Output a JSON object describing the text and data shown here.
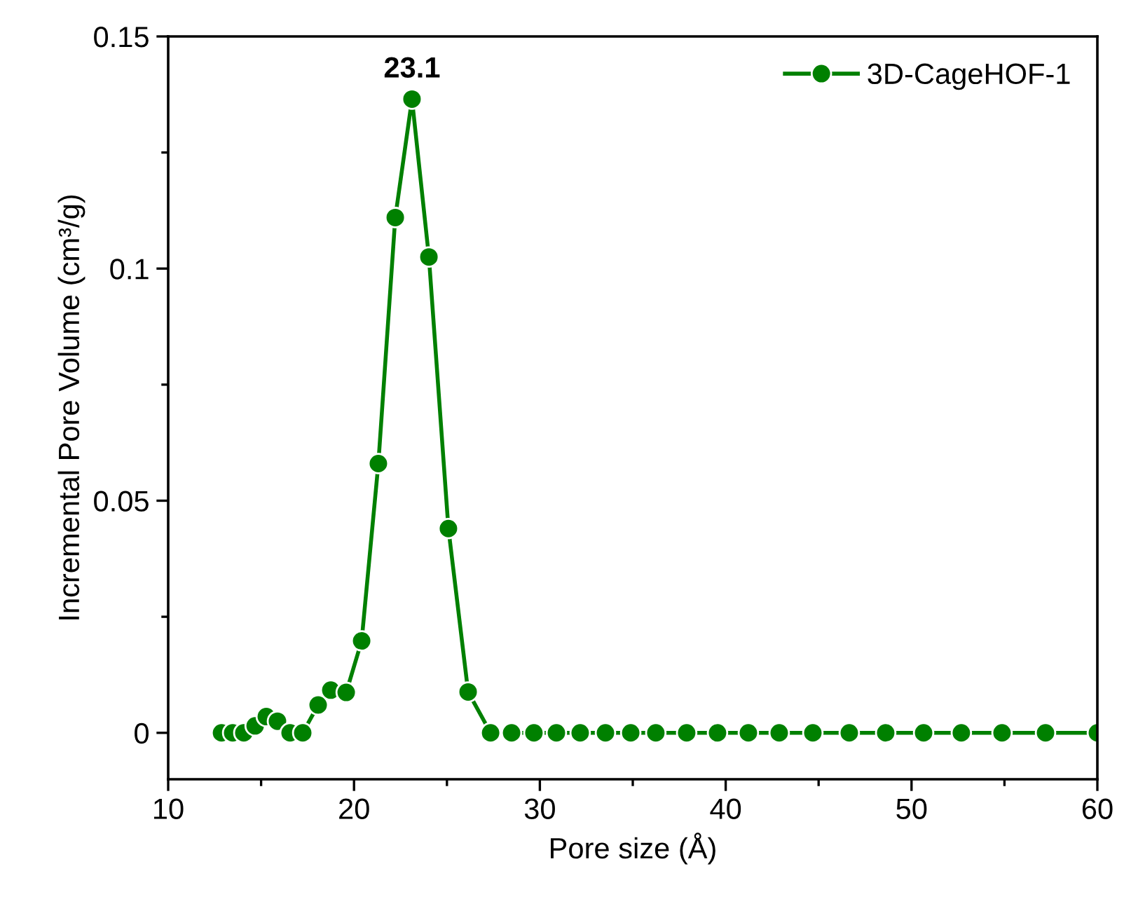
{
  "chart_data": {
    "type": "line",
    "xlabel": "Pore size (Å)",
    "ylabel": "Incremental Pore Volume (cm³/g)",
    "x": [
      12.87,
      13.47,
      14.07,
      14.68,
      15.28,
      15.88,
      16.56,
      17.24,
      18.07,
      18.75,
      19.58,
      20.41,
      21.31,
      22.22,
      23.12,
      24.03,
      25.08,
      26.14,
      27.35,
      28.48,
      29.68,
      30.89,
      32.17,
      33.53,
      34.89,
      36.24,
      37.9,
      39.56,
      41.22,
      42.88,
      44.69,
      46.65,
      48.61,
      50.65,
      52.68,
      54.87,
      57.21,
      60.0
    ],
    "series": [
      {
        "name": "3D-CageHOF-1",
        "color": "#008000",
        "values": [
          0,
          0,
          0,
          0.0015,
          0.0035,
          0.0025,
          0,
          0,
          0.006,
          0.0092,
          0.0087,
          0.0198,
          0.058,
          0.111,
          0.1365,
          0.1025,
          0.044,
          0.0088,
          0,
          0,
          0,
          0,
          0,
          0,
          0,
          0,
          0,
          0,
          0,
          0,
          0,
          0,
          0,
          0,
          0,
          0,
          0,
          0
        ]
      }
    ],
    "annotations": [
      {
        "text": "23.1",
        "x": 23.12,
        "y": 0.1365
      }
    ],
    "xlim": [
      10,
      60
    ],
    "xticks": [
      10,
      20,
      30,
      40,
      50,
      60
    ],
    "ylim": [
      -0.01,
      0.15
    ],
    "yticks": [
      0,
      0.05,
      0.1,
      0.15
    ],
    "marker": "circle",
    "line_style": "solid",
    "legend": "top right",
    "grid": false
  }
}
